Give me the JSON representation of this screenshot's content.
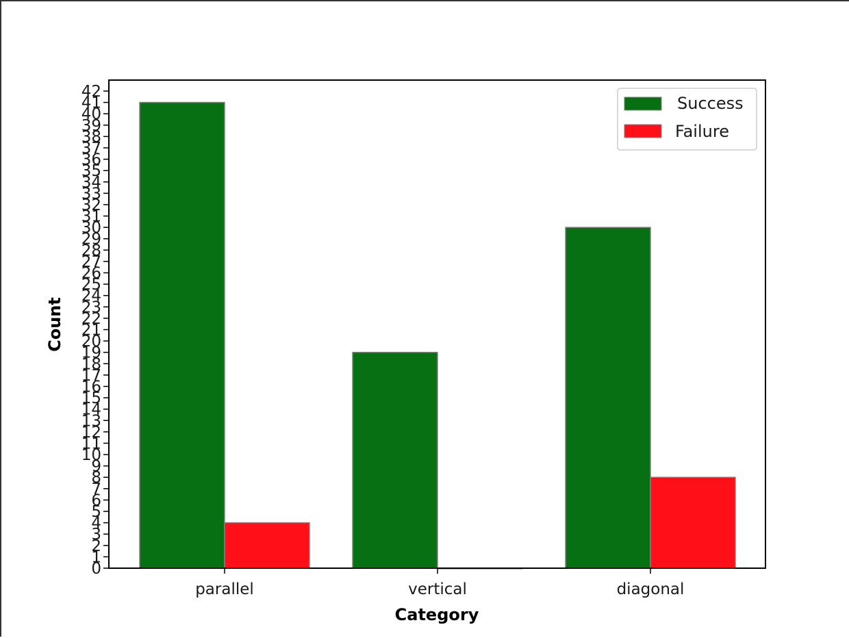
{
  "chart_data": {
    "type": "bar",
    "categories": [
      "parallel",
      "vertical",
      "diagonal"
    ],
    "series": [
      {
        "name": "Success",
        "values": [
          41,
          19,
          30
        ],
        "color": "#067012"
      },
      {
        "name": "Failure",
        "values": [
          4,
          0,
          8
        ],
        "color": "#ff1018"
      }
    ],
    "xlabel": "Category",
    "ylabel": "Count",
    "ylim": [
      0,
      42
    ],
    "ytick_step": 1,
    "legend_position": "top-right",
    "grid": false,
    "bar_edge_color": "#808080"
  }
}
